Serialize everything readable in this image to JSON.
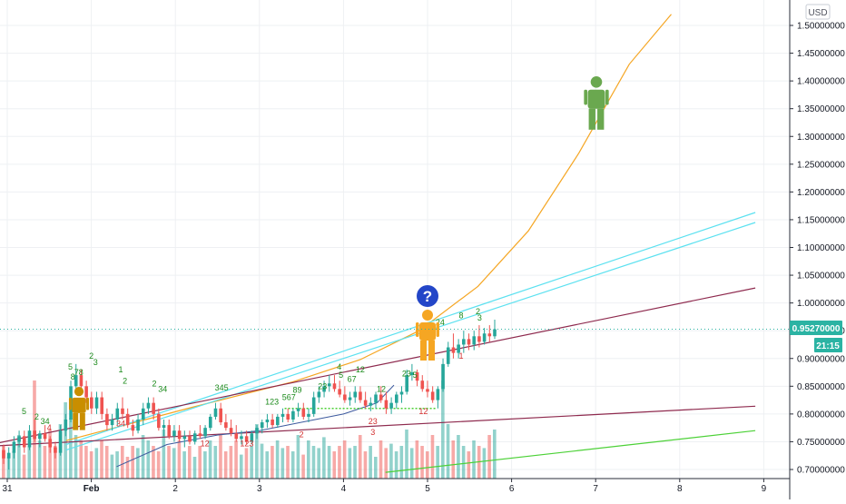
{
  "currency": "USD",
  "price_label": "0.95270000",
  "countdown_label": "21:15",
  "colors": {
    "up": "#26a69a",
    "down": "#ef5350",
    "cyan": "#5ce1f0",
    "orange": "#f5a623",
    "maroon": "#8e2a4e",
    "green_line": "#4cd137",
    "navy": "#3d5a9e",
    "td_green": "#1b8a1b",
    "td_red": "#d32f2f",
    "figure_gold": "#c98e00",
    "figure_orange": "#f5a623",
    "figure_green": "#6aa84f",
    "badge_blue": "#2346c8",
    "price_tag": "#2bb3a3",
    "grid": "#eef0f3"
  },
  "icons": [
    "person-icon",
    "person-icon",
    "person-icon",
    "question-icon"
  ],
  "chart_data": {
    "type": "candlestick",
    "x_tick_labels": [
      "31",
      "Feb",
      "2",
      "3",
      "4",
      "5",
      "6",
      "7",
      "8",
      "9"
    ],
    "y_tick_labels": [
      "0.70000000",
      "0.75000000",
      "0.80000000",
      "0.85000000",
      "0.90000000",
      "0.95000000",
      "1.00000000",
      "1.05000000",
      "1.10000000",
      "1.15000000",
      "1.20000000",
      "1.25000000",
      "1.30000000",
      "1.35000000",
      "1.40000000",
      "1.45000000",
      "1.50000000"
    ],
    "ylim": [
      0.69,
      1.52
    ],
    "grid": true,
    "last_price": 0.9527,
    "ohlc": [
      [
        0.735,
        0.745,
        0.71,
        0.72
      ],
      [
        0.72,
        0.74,
        0.7,
        0.73
      ],
      [
        0.73,
        0.76,
        0.72,
        0.75
      ],
      [
        0.75,
        0.77,
        0.74,
        0.76
      ],
      [
        0.76,
        0.77,
        0.73,
        0.74
      ],
      [
        0.74,
        0.78,
        0.735,
        0.77
      ],
      [
        0.77,
        0.79,
        0.75,
        0.755
      ],
      [
        0.755,
        0.77,
        0.74,
        0.765
      ],
      [
        0.765,
        0.78,
        0.75,
        0.755
      ],
      [
        0.755,
        0.76,
        0.73,
        0.74
      ],
      [
        0.74,
        0.75,
        0.72,
        0.73
      ],
      [
        0.73,
        0.78,
        0.725,
        0.77
      ],
      [
        0.77,
        0.8,
        0.76,
        0.79
      ],
      [
        0.79,
        0.86,
        0.785,
        0.85
      ],
      [
        0.85,
        0.89,
        0.84,
        0.87
      ],
      [
        0.87,
        0.88,
        0.84,
        0.85
      ],
      [
        0.85,
        0.86,
        0.82,
        0.83
      ],
      [
        0.83,
        0.84,
        0.8,
        0.81
      ],
      [
        0.81,
        0.84,
        0.8,
        0.83
      ],
      [
        0.83,
        0.84,
        0.79,
        0.8
      ],
      [
        0.8,
        0.81,
        0.77,
        0.78
      ],
      [
        0.78,
        0.8,
        0.77,
        0.79
      ],
      [
        0.79,
        0.82,
        0.78,
        0.81
      ],
      [
        0.81,
        0.83,
        0.79,
        0.8
      ],
      [
        0.8,
        0.81,
        0.775,
        0.78
      ],
      [
        0.78,
        0.79,
        0.76,
        0.77
      ],
      [
        0.77,
        0.8,
        0.765,
        0.79
      ],
      [
        0.79,
        0.82,
        0.78,
        0.81
      ],
      [
        0.81,
        0.83,
        0.8,
        0.82
      ],
      [
        0.82,
        0.83,
        0.79,
        0.8
      ],
      [
        0.8,
        0.81,
        0.77,
        0.775
      ],
      [
        0.775,
        0.79,
        0.76,
        0.78
      ],
      [
        0.78,
        0.79,
        0.755,
        0.76
      ],
      [
        0.76,
        0.78,
        0.75,
        0.77
      ],
      [
        0.77,
        0.78,
        0.75,
        0.755
      ],
      [
        0.755,
        0.77,
        0.74,
        0.76
      ],
      [
        0.76,
        0.77,
        0.745,
        0.75
      ],
      [
        0.75,
        0.77,
        0.745,
        0.765
      ],
      [
        0.765,
        0.78,
        0.755,
        0.76
      ],
      [
        0.76,
        0.78,
        0.755,
        0.775
      ],
      [
        0.775,
        0.8,
        0.77,
        0.795
      ],
      [
        0.795,
        0.82,
        0.79,
        0.81
      ],
      [
        0.81,
        0.82,
        0.78,
        0.785
      ],
      [
        0.785,
        0.8,
        0.77,
        0.775
      ],
      [
        0.775,
        0.79,
        0.76,
        0.765
      ],
      [
        0.765,
        0.78,
        0.75,
        0.755
      ],
      [
        0.755,
        0.77,
        0.745,
        0.76
      ],
      [
        0.76,
        0.77,
        0.745,
        0.75
      ],
      [
        0.75,
        0.77,
        0.745,
        0.765
      ],
      [
        0.765,
        0.78,
        0.755,
        0.775
      ],
      [
        0.775,
        0.79,
        0.765,
        0.785
      ],
      [
        0.785,
        0.8,
        0.775,
        0.79
      ],
      [
        0.79,
        0.8,
        0.775,
        0.78
      ],
      [
        0.78,
        0.8,
        0.775,
        0.795
      ],
      [
        0.795,
        0.81,
        0.785,
        0.8
      ],
      [
        0.8,
        0.81,
        0.785,
        0.79
      ],
      [
        0.79,
        0.81,
        0.785,
        0.805
      ],
      [
        0.805,
        0.82,
        0.795,
        0.81
      ],
      [
        0.81,
        0.82,
        0.79,
        0.795
      ],
      [
        0.795,
        0.81,
        0.785,
        0.8
      ],
      [
        0.8,
        0.84,
        0.795,
        0.83
      ],
      [
        0.83,
        0.85,
        0.82,
        0.84
      ],
      [
        0.84,
        0.86,
        0.83,
        0.85
      ],
      [
        0.85,
        0.87,
        0.84,
        0.855
      ],
      [
        0.855,
        0.87,
        0.84,
        0.845
      ],
      [
        0.845,
        0.86,
        0.83,
        0.835
      ],
      [
        0.835,
        0.85,
        0.82,
        0.825
      ],
      [
        0.825,
        0.84,
        0.815,
        0.83
      ],
      [
        0.83,
        0.85,
        0.82,
        0.84
      ],
      [
        0.84,
        0.85,
        0.82,
        0.825
      ],
      [
        0.825,
        0.84,
        0.81,
        0.815
      ],
      [
        0.815,
        0.83,
        0.805,
        0.82
      ],
      [
        0.82,
        0.84,
        0.81,
        0.835
      ],
      [
        0.835,
        0.85,
        0.82,
        0.825
      ],
      [
        0.825,
        0.84,
        0.8,
        0.81
      ],
      [
        0.81,
        0.83,
        0.8,
        0.82
      ],
      [
        0.82,
        0.84,
        0.81,
        0.835
      ],
      [
        0.835,
        0.85,
        0.82,
        0.84
      ],
      [
        0.84,
        0.88,
        0.835,
        0.87
      ],
      [
        0.87,
        0.89,
        0.86,
        0.875
      ],
      [
        0.875,
        0.88,
        0.85,
        0.86
      ],
      [
        0.86,
        0.87,
        0.84,
        0.845
      ],
      [
        0.845,
        0.86,
        0.83,
        0.84
      ],
      [
        0.84,
        0.85,
        0.82,
        0.825
      ],
      [
        0.825,
        0.85,
        0.81,
        0.845
      ],
      [
        0.845,
        0.9,
        0.84,
        0.89
      ],
      [
        0.89,
        0.93,
        0.885,
        0.92
      ],
      [
        0.92,
        0.945,
        0.9,
        0.91
      ],
      [
        0.91,
        0.935,
        0.9,
        0.925
      ],
      [
        0.925,
        0.95,
        0.91,
        0.935
      ],
      [
        0.935,
        0.945,
        0.915,
        0.925
      ],
      [
        0.925,
        0.95,
        0.915,
        0.94
      ],
      [
        0.94,
        0.96,
        0.92,
        0.93
      ],
      [
        0.93,
        0.955,
        0.925,
        0.945
      ],
      [
        0.945,
        0.96,
        0.93,
        0.94
      ],
      [
        0.94,
        0.97,
        0.935,
        0.9527
      ]
    ],
    "volume_relative": [
      0.3,
      0.2,
      0.25,
      0.4,
      0.22,
      0.3,
      0.9,
      0.35,
      0.3,
      0.45,
      0.3,
      0.5,
      0.7,
      0.55,
      0.4,
      0.35,
      0.3,
      0.25,
      0.28,
      0.35,
      0.3,
      0.22,
      0.25,
      0.3,
      0.2,
      0.3,
      0.28,
      0.4,
      0.35,
      0.3,
      0.25,
      0.45,
      0.3,
      0.28,
      0.35,
      0.25,
      0.3,
      0.2,
      0.3,
      0.25,
      0.35,
      0.3,
      0.4,
      0.25,
      0.3,
      0.35,
      0.22,
      0.28,
      0.3,
      0.5,
      0.32,
      0.25,
      0.3,
      0.35,
      0.28,
      0.3,
      0.25,
      0.4,
      0.22,
      0.35,
      0.3,
      0.28,
      0.38,
      0.3,
      0.25,
      0.3,
      0.35,
      0.28,
      0.3,
      0.4,
      0.25,
      0.3,
      0.2,
      0.35,
      0.28,
      0.32,
      0.25,
      0.3,
      0.45,
      0.28,
      0.35,
      0.3,
      0.25,
      0.4,
      0.3,
      0.9,
      0.5,
      0.35,
      0.4,
      0.3,
      0.25,
      0.35,
      0.3,
      0.28,
      0.4,
      0.45
    ],
    "series": [
      {
        "type": "line",
        "points": [
          [
            31.7,
            0.752
          ],
          [
            33.2,
            0.812
          ],
          [
            34.4,
            0.858
          ],
          [
            35.2,
            0.898
          ],
          [
            35.9,
            0.95
          ],
          [
            36.6,
            1.03
          ],
          [
            37.2,
            1.13
          ],
          [
            37.8,
            1.27
          ],
          [
            38.4,
            1.43
          ],
          [
            38.9,
            1.52
          ]
        ],
        "color": "orange"
      },
      {
        "type": "line",
        "points": [
          [
            31.7,
            0.745
          ],
          [
            39.9,
            1.163
          ]
        ],
        "color": "cyan"
      },
      {
        "type": "line",
        "points": [
          [
            31.7,
            0.735
          ],
          [
            39.9,
            1.145
          ]
        ],
        "color": "cyan"
      },
      {
        "type": "line",
        "points": [
          [
            30.8,
            0.745
          ],
          [
            39.9,
            1.027
          ]
        ],
        "color": "maroon"
      },
      {
        "type": "line",
        "points": [
          [
            30.8,
            0.742
          ],
          [
            39.9,
            0.814
          ]
        ],
        "color": "maroon"
      },
      {
        "type": "line",
        "points": [
          [
            35.5,
            0.695
          ],
          [
            39.9,
            0.77
          ]
        ],
        "color": "green_line"
      },
      {
        "type": "line",
        "points": [
          [
            32.3,
            0.705
          ],
          [
            32.9,
            0.745
          ],
          [
            33.5,
            0.762
          ],
          [
            34.0,
            0.77
          ],
          [
            34.5,
            0.785
          ],
          [
            35.0,
            0.8
          ],
          [
            35.4,
            0.82
          ],
          [
            35.6,
            0.852
          ]
        ],
        "color": "navy"
      }
    ],
    "td_labels": [
      {
        "t": "5",
        "x": 31.2,
        "y": 0.8,
        "c": "g"
      },
      {
        "t": "2",
        "x": 31.35,
        "y": 0.79,
        "c": "g"
      },
      {
        "t": "34",
        "x": 31.45,
        "y": 0.782,
        "c": "g"
      },
      {
        "t": "5",
        "x": 31.75,
        "y": 0.88,
        "c": "g"
      },
      {
        "t": "8",
        "x": 31.78,
        "y": 0.862,
        "c": "g"
      },
      {
        "t": "78",
        "x": 31.85,
        "y": 0.87,
        "c": "g"
      },
      {
        "t": "2",
        "x": 32.0,
        "y": 0.9,
        "c": "g"
      },
      {
        "t": "3",
        "x": 32.05,
        "y": 0.888,
        "c": "g"
      },
      {
        "t": "1",
        "x": 32.35,
        "y": 0.875,
        "c": "g"
      },
      {
        "t": "2",
        "x": 32.4,
        "y": 0.855,
        "c": "g"
      },
      {
        "t": "2",
        "x": 32.75,
        "y": 0.85,
        "c": "g"
      },
      {
        "t": "34",
        "x": 32.85,
        "y": 0.84,
        "c": "g"
      },
      {
        "t": "345",
        "x": 33.55,
        "y": 0.842,
        "c": "g"
      },
      {
        "t": "123",
        "x": 34.15,
        "y": 0.817,
        "c": "g"
      },
      {
        "t": "89",
        "x": 34.45,
        "y": 0.838,
        "c": "g"
      },
      {
        "t": "567",
        "x": 34.35,
        "y": 0.825,
        "c": "g"
      },
      {
        "t": "23",
        "x": 34.75,
        "y": 0.845,
        "c": "g"
      },
      {
        "t": "4",
        "x": 34.95,
        "y": 0.88,
        "c": "g"
      },
      {
        "t": "5",
        "x": 34.97,
        "y": 0.865,
        "c": "g"
      },
      {
        "t": "67",
        "x": 35.1,
        "y": 0.858,
        "c": "g"
      },
      {
        "t": "12",
        "x": 35.2,
        "y": 0.875,
        "c": "g"
      },
      {
        "t": "12",
        "x": 35.45,
        "y": 0.84,
        "c": "g"
      },
      {
        "t": "23",
        "x": 35.75,
        "y": 0.868,
        "c": "g"
      },
      {
        "t": "5",
        "x": 35.85,
        "y": 0.865,
        "c": "g"
      },
      {
        "t": "24",
        "x": 36.15,
        "y": 0.96,
        "c": "g"
      },
      {
        "t": "8",
        "x": 36.4,
        "y": 0.972,
        "c": "g"
      },
      {
        "t": "2",
        "x": 36.6,
        "y": 0.98,
        "c": "g"
      },
      {
        "t": "3",
        "x": 36.62,
        "y": 0.968,
        "c": "g"
      },
      {
        "t": "4",
        "x": 31.5,
        "y": 0.77,
        "c": "r"
      },
      {
        "t": "34",
        "x": 32.35,
        "y": 0.778,
        "c": "r"
      },
      {
        "t": "12",
        "x": 33.35,
        "y": 0.742,
        "c": "r"
      },
      {
        "t": "123",
        "x": 33.85,
        "y": 0.742,
        "c": "r"
      },
      {
        "t": "2",
        "x": 34.5,
        "y": 0.758,
        "c": "r"
      },
      {
        "t": "23",
        "x": 35.35,
        "y": 0.782,
        "c": "r"
      },
      {
        "t": "3",
        "x": 35.35,
        "y": 0.762,
        "c": "r"
      },
      {
        "t": "12",
        "x": 35.95,
        "y": 0.8,
        "c": "r"
      },
      {
        "t": "1",
        "x": 36.4,
        "y": 0.9,
        "c": "r"
      }
    ]
  }
}
